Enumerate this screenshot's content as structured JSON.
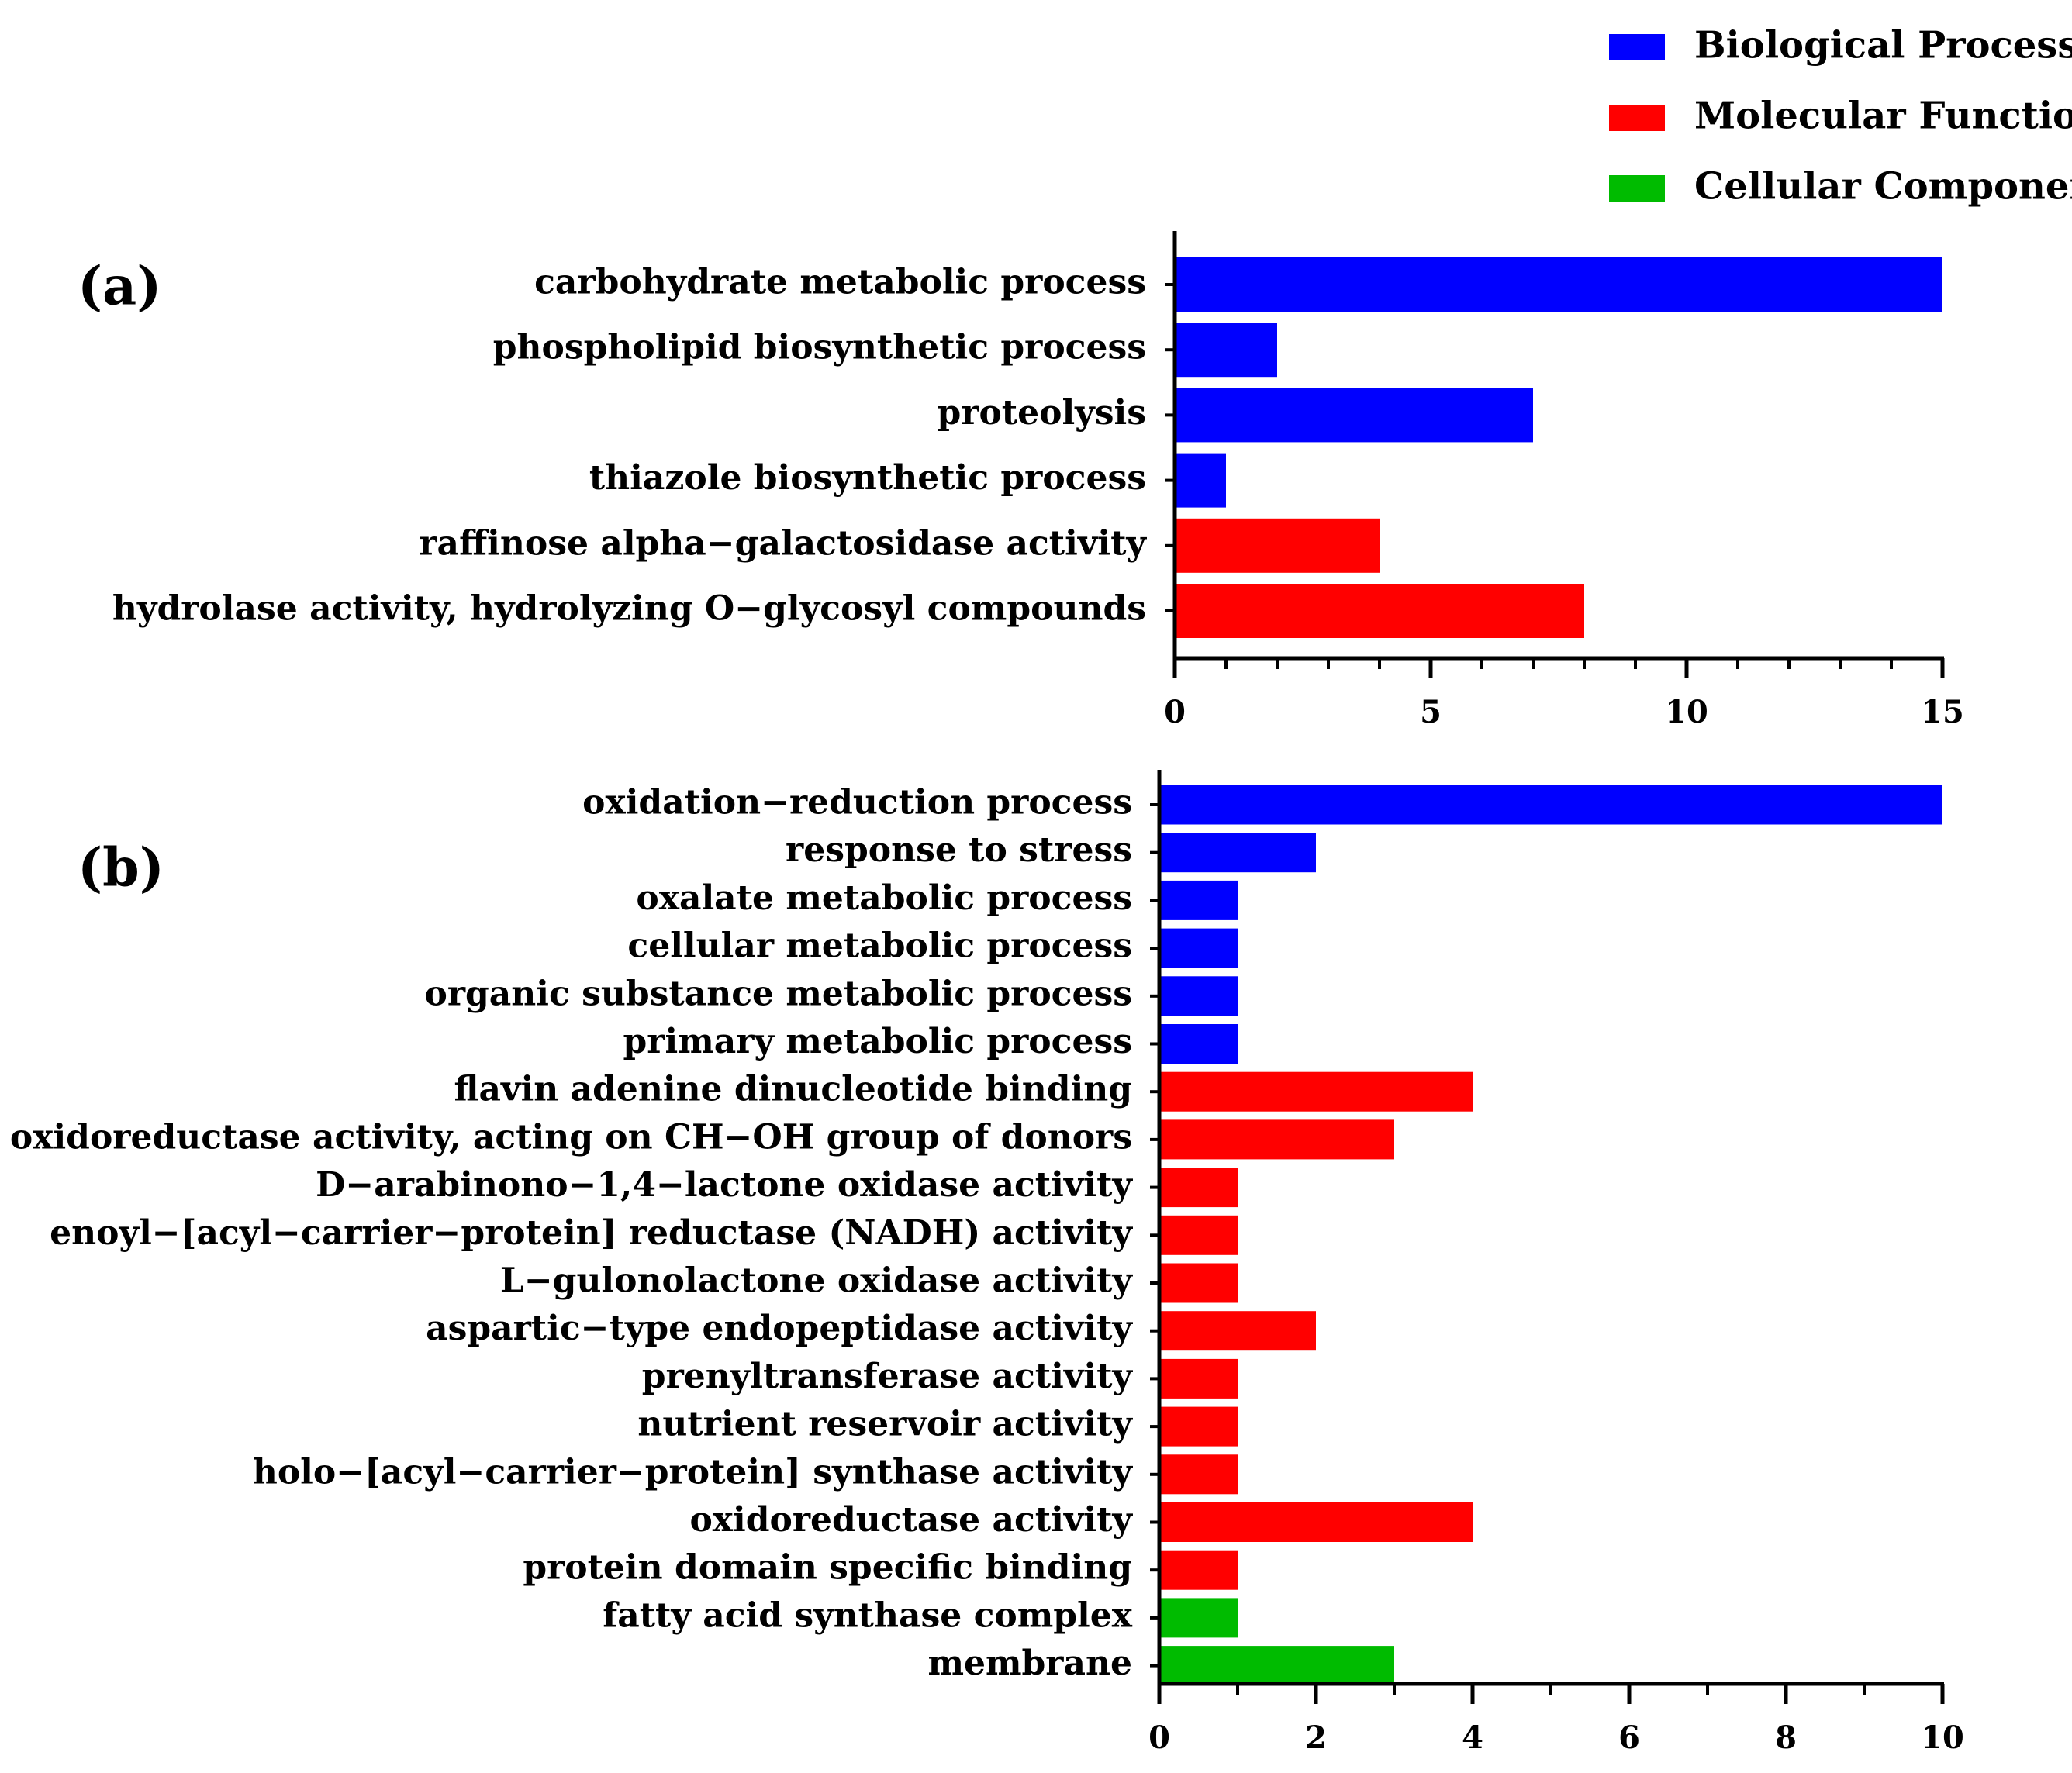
{
  "legend": [
    {
      "label": "Biological Process",
      "color": "#0000ff"
    },
    {
      "label": "Molecular Function",
      "color": "#ff0000"
    },
    {
      "label": "Cellular Component",
      "color": "#00bb00"
    }
  ],
  "chart_data": [
    {
      "type": "bar",
      "orientation": "horizontal",
      "panel_label": "(a)",
      "xlim": [
        0,
        15
      ],
      "x_ticks": [
        0,
        5,
        10,
        15
      ],
      "x_minor_step": 1,
      "bars": [
        {
          "label": "carbohydrate metabolic process",
          "value": 15,
          "category": "Biological Process"
        },
        {
          "label": "phospholipid biosynthetic process",
          "value": 2,
          "category": "Biological Process"
        },
        {
          "label": "proteolysis",
          "value": 7,
          "category": "Biological Process"
        },
        {
          "label": "thiazole biosynthetic process",
          "value": 1,
          "category": "Biological Process"
        },
        {
          "label": "raffinose alpha−galactosidase activity",
          "value": 4,
          "category": "Molecular Function"
        },
        {
          "label": "hydrolase activity, hydrolyzing O−glycosyl compounds",
          "value": 8,
          "category": "Molecular Function"
        }
      ]
    },
    {
      "type": "bar",
      "orientation": "horizontal",
      "panel_label": "(b)",
      "xlim": [
        0,
        10
      ],
      "x_ticks": [
        0,
        2,
        4,
        6,
        8,
        10
      ],
      "x_minor_step": 1,
      "bars": [
        {
          "label": "oxidation−reduction process",
          "value": 10,
          "category": "Biological Process"
        },
        {
          "label": "response to stress",
          "value": 2,
          "category": "Biological Process"
        },
        {
          "label": "oxalate metabolic process",
          "value": 1,
          "category": "Biological Process"
        },
        {
          "label": "cellular metabolic process",
          "value": 1,
          "category": "Biological Process"
        },
        {
          "label": "organic substance metabolic process",
          "value": 1,
          "category": "Biological Process"
        },
        {
          "label": "primary metabolic process",
          "value": 1,
          "category": "Biological Process"
        },
        {
          "label": "flavin adenine dinucleotide binding",
          "value": 4,
          "category": "Molecular Function"
        },
        {
          "label": "oxidoreductase activity, acting on CH−OH group of donors",
          "value": 3,
          "category": "Molecular Function"
        },
        {
          "label": "D−arabinono−1,4−lactone oxidase activity",
          "value": 1,
          "category": "Molecular Function"
        },
        {
          "label": "enoyl−[acyl−carrier−protein] reductase (NADH) activity",
          "value": 1,
          "category": "Molecular Function"
        },
        {
          "label": "L−gulonolactone oxidase activity",
          "value": 1,
          "category": "Molecular Function"
        },
        {
          "label": "aspartic−type endopeptidase activity",
          "value": 2,
          "category": "Molecular Function"
        },
        {
          "label": "prenyltransferase activity",
          "value": 1,
          "category": "Molecular Function"
        },
        {
          "label": "nutrient reservoir activity",
          "value": 1,
          "category": "Molecular Function"
        },
        {
          "label": "holo−[acyl−carrier−protein] synthase activity",
          "value": 1,
          "category": "Molecular Function"
        },
        {
          "label": "oxidoreductase activity",
          "value": 4,
          "category": "Molecular Function"
        },
        {
          "label": "protein domain specific binding",
          "value": 1,
          "category": "Molecular Function"
        },
        {
          "label": "fatty acid synthase complex",
          "value": 1,
          "category": "Cellular Component"
        },
        {
          "label": "membrane",
          "value": 3,
          "category": "Cellular Component"
        }
      ]
    }
  ]
}
